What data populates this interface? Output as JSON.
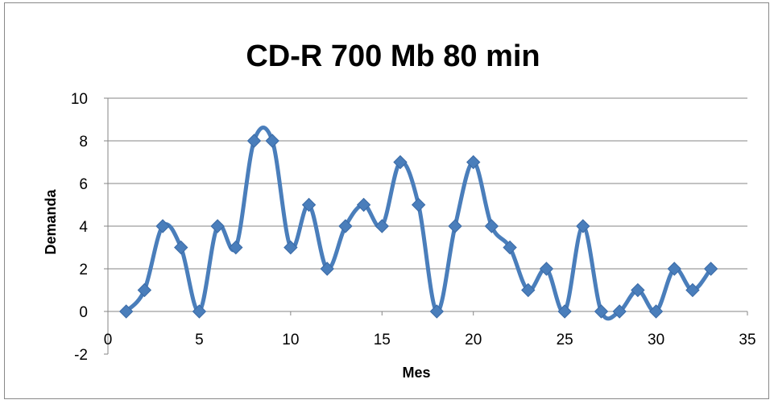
{
  "chart_data": {
    "type": "line",
    "title": "CD-R  700 Mb 80 min",
    "xlabel": "Mes",
    "ylabel": "Demanda",
    "xlim": [
      0,
      35
    ],
    "ylim": [
      -2,
      10
    ],
    "x_ticks": [
      0,
      5,
      10,
      15,
      20,
      25,
      30,
      35
    ],
    "y_ticks": [
      -2,
      0,
      2,
      4,
      6,
      8,
      10
    ],
    "grid": "horizontal",
    "legend": "none",
    "smooth": true,
    "series": [
      {
        "x": [
          1,
          2,
          3,
          4,
          5,
          6,
          7,
          8,
          9,
          10,
          11,
          12,
          13,
          14,
          15,
          16,
          17,
          18,
          19,
          20,
          21,
          22,
          23,
          24,
          25,
          26,
          27,
          28,
          29,
          30,
          31,
          32,
          33
        ],
        "y": [
          0,
          1,
          4,
          3,
          0,
          4,
          3,
          8,
          8,
          3,
          5,
          2,
          4,
          5,
          4,
          7,
          5,
          0,
          4,
          7,
          4,
          3,
          1,
          2,
          0,
          4,
          0,
          0,
          1,
          0,
          2,
          1,
          2
        ],
        "color": "#4a7ebb",
        "marker": "diamond"
      }
    ]
  }
}
